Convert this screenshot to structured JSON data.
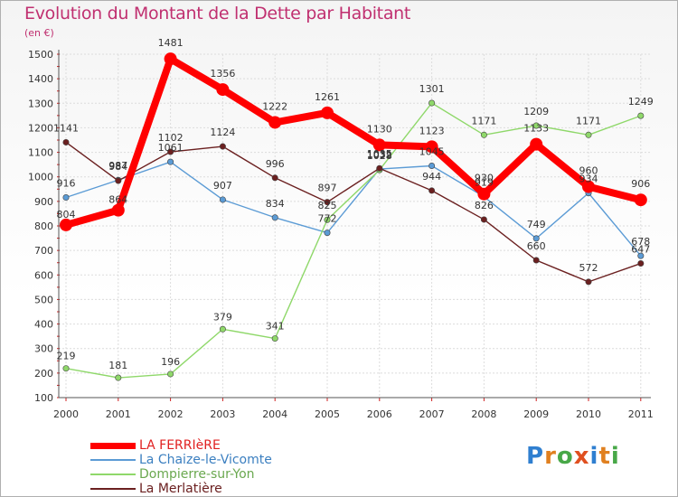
{
  "header": {
    "title": "Evolution du Montant de la Dette par Habitant",
    "unit": "(en €)"
  },
  "logo": {
    "letters": [
      "P",
      "r",
      "o",
      "x",
      "i",
      "t",
      "i"
    ],
    "colors": [
      "#2f7fd0",
      "#e08020",
      "#48a848",
      "#e05020",
      "#2f7fd0",
      "#e08020",
      "#48a848"
    ]
  },
  "chart_data": {
    "type": "line",
    "title": "Evolution du Montant de la Dette par Habitant",
    "ylabel": "(en €)",
    "xlabel": "",
    "x": [
      "2000",
      "2001",
      "2002",
      "2003",
      "2004",
      "2005",
      "2006",
      "2007",
      "2008",
      "2009",
      "2010",
      "2011"
    ],
    "ylim": [
      100,
      1500
    ],
    "yticks": [
      100,
      200,
      300,
      400,
      500,
      600,
      700,
      800,
      900,
      1000,
      1100,
      1200,
      1300,
      1400,
      1500
    ],
    "grid": true,
    "legend_position": "bottom-left",
    "series": [
      {
        "name": "LA FERRIèRE",
        "color": "#ff0000",
        "values": [
          804,
          864,
          1481,
          1356,
          1222,
          1261,
          1130,
          1123,
          930,
          1133,
          960,
          906
        ]
      },
      {
        "name": "La Chaize-le-Vicomte",
        "color": "#5b9bd5",
        "values": [
          916,
          987,
          1061,
          907,
          834,
          772,
          1032,
          1045,
          919,
          749,
          934,
          678
        ]
      },
      {
        "name": "Dompierre-sur-Yon",
        "color": "#8fd86a",
        "values": [
          219,
          181,
          196,
          379,
          341,
          825,
          1028,
          1301,
          1171,
          1209,
          1171,
          1249
        ]
      },
      {
        "name": "La Merlatière",
        "color": "#6b2020",
        "values": [
          1141,
          984,
          1102,
          1124,
          996,
          897,
          1035,
          944,
          826,
          660,
          572,
          647
        ]
      }
    ]
  }
}
